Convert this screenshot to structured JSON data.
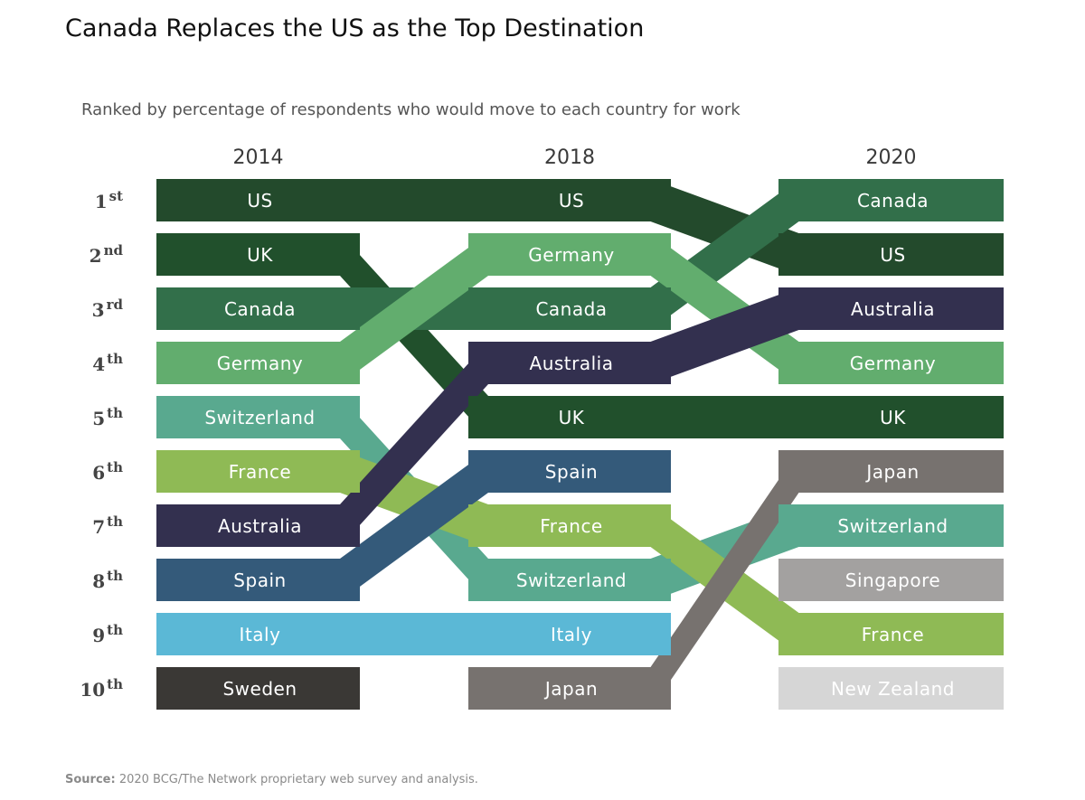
{
  "header": {
    "title": "Canada Replaces the US as the Top Destination",
    "subtitle": "Ranked by percentage of respondents who would move to each country for work"
  },
  "footer": {
    "source_label": "Source:",
    "source_text": "2020 BCG/The Network proprietary web survey and analysis."
  },
  "chart_data": {
    "type": "bump",
    "years": [
      "2014",
      "2018",
      "2020"
    ],
    "ranks": [
      {
        "num": "1",
        "suffix": "st"
      },
      {
        "num": "2",
        "suffix": "nd"
      },
      {
        "num": "3",
        "suffix": "rd"
      },
      {
        "num": "4",
        "suffix": "th"
      },
      {
        "num": "5",
        "suffix": "th"
      },
      {
        "num": "6",
        "suffix": "th"
      },
      {
        "num": "7",
        "suffix": "th"
      },
      {
        "num": "8",
        "suffix": "th"
      },
      {
        "num": "9",
        "suffix": "th"
      },
      {
        "num": "10",
        "suffix": "th"
      }
    ],
    "series": [
      {
        "name": "US",
        "color": "#234a2c",
        "ranks": [
          1,
          1,
          2
        ]
      },
      {
        "name": "UK",
        "color": "#21502c",
        "ranks": [
          2,
          5,
          5
        ]
      },
      {
        "name": "Canada",
        "color": "#326f4a",
        "ranks": [
          3,
          3,
          1
        ]
      },
      {
        "name": "Germany",
        "color": "#62ad6e",
        "ranks": [
          4,
          2,
          4
        ]
      },
      {
        "name": "Switzerland",
        "color": "#59a98f",
        "ranks": [
          5,
          8,
          7
        ]
      },
      {
        "name": "France",
        "color": "#8fba55",
        "ranks": [
          6,
          7,
          9
        ]
      },
      {
        "name": "Australia",
        "color": "#33304f",
        "ranks": [
          7,
          4,
          3
        ]
      },
      {
        "name": "Spain",
        "color": "#345a7a",
        "ranks": [
          8,
          6,
          null
        ]
      },
      {
        "name": "Italy",
        "color": "#5bb8d6",
        "ranks": [
          9,
          9,
          null
        ]
      },
      {
        "name": "Sweden",
        "color": "#3a3835",
        "ranks": [
          10,
          null,
          null
        ]
      },
      {
        "name": "Japan",
        "color": "#77726f",
        "ranks": [
          null,
          10,
          6
        ]
      },
      {
        "name": "Singapore",
        "color": "#a3a1a0",
        "ranks": [
          null,
          null,
          8
        ]
      },
      {
        "name": "New Zealand",
        "color": "#d6d6d6",
        "ranks": [
          null,
          null,
          10
        ]
      }
    ]
  }
}
